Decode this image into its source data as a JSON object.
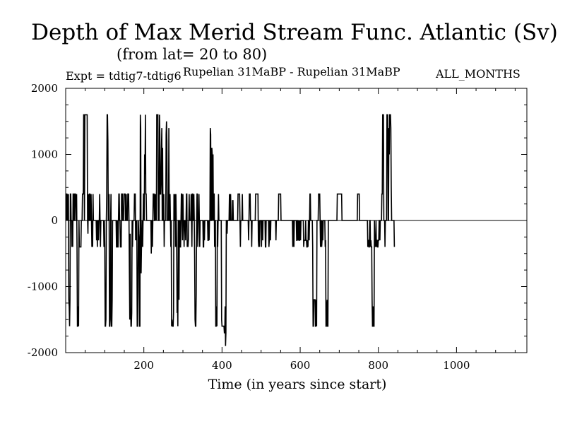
{
  "header": {
    "title": "Depth of Max Merid Stream Func. Atlantic (Sv)",
    "subtitle": "(from lat= 20 to 80)",
    "experiment": "Expt = tdtig7-tdtig6",
    "period": "Rupelian  31MaBP - Rupelian  31MaBP",
    "months": "ALL_MONTHS"
  },
  "chart_data": {
    "type": "line",
    "title": "Depth of Max Merid Stream Func. Atlantic (Sv)",
    "xlabel": "Time (in years since start)",
    "ylabel": "",
    "xlim": [
      0,
      1180
    ],
    "ylim": [
      -2000,
      2000
    ],
    "x_ticks": [
      200,
      400,
      600,
      800,
      1000
    ],
    "y_ticks": [
      -2000,
      -1000,
      0,
      1000,
      2000
    ],
    "grid": false,
    "legend": "none",
    "line_color": "#000000",
    "series": [
      {
        "x_start": 1,
        "x_step": 1,
        "values": [
          0,
          400,
          400,
          0,
          400,
          0,
          400,
          -1200,
          -1300,
          -1600,
          -1200,
          400,
          400,
          0,
          0,
          -400,
          0,
          -400,
          400,
          400,
          0,
          0,
          400,
          400,
          400,
          0,
          0,
          400,
          -400,
          -1600,
          -1600,
          -1300,
          -1600,
          0,
          -400,
          -400,
          -400,
          -400,
          -400,
          0,
          0,
          0,
          400,
          400,
          400,
          1600,
          1600,
          0,
          1600,
          1600,
          1600,
          1600,
          1600,
          1600,
          1600,
          0,
          -200,
          400,
          0,
          0,
          400,
          400,
          0,
          0,
          400,
          0,
          -400,
          0,
          -400,
          400,
          0,
          0,
          0,
          0,
          0,
          0,
          0,
          0,
          -300,
          0,
          -400,
          0,
          0,
          -300,
          0,
          0,
          400,
          0,
          -400,
          0,
          0,
          0,
          0,
          0,
          0,
          0,
          0,
          -400,
          0,
          -400,
          -1600,
          -1600,
          -1500,
          0,
          400,
          1600,
          1600,
          1200,
          0,
          0,
          400,
          -1600,
          -1600,
          -1500,
          0,
          400,
          -1600,
          -1600,
          -1200,
          0,
          0,
          0,
          0,
          0,
          0,
          0,
          0,
          0,
          0,
          -400,
          -400,
          0,
          -400,
          -400,
          0,
          400,
          400,
          0,
          0,
          -400,
          -400,
          -400,
          400,
          400,
          400,
          0,
          0,
          0,
          400,
          400,
          400,
          400,
          0,
          0,
          400,
          0,
          0,
          0,
          400,
          400,
          400,
          0,
          -800,
          -1500,
          -200,
          -1300,
          -1600,
          -1600,
          -1400,
          0,
          -400,
          0,
          0,
          0,
          0,
          400,
          400,
          400,
          -300,
          0,
          -300,
          0,
          -1600,
          -1600,
          -1100,
          0,
          -200,
          -300,
          -1600,
          -1600,
          1600,
          1400,
          -800,
          -400,
          -300,
          0,
          -400,
          0,
          400,
          400,
          0,
          1000,
          700,
          1600,
          400,
          400,
          0,
          0,
          0,
          0,
          0,
          0,
          0,
          0,
          0,
          0,
          0,
          0,
          -500,
          0,
          0,
          -400,
          0,
          400,
          400,
          400,
          0,
          0,
          400,
          0,
          400,
          0,
          1600,
          1600,
          1600,
          1600,
          0,
          0,
          0,
          1600,
          1300,
          400,
          400,
          600,
          1100,
          1400,
          0,
          1100,
          0,
          0,
          400,
          -400,
          0,
          0,
          0,
          0,
          1300,
          1500,
          1200,
          0,
          0,
          0,
          0,
          1400,
          0,
          0,
          400,
          0,
          -400,
          0,
          -1600,
          -1500,
          -1600,
          -1600,
          -1600,
          -1400,
          400,
          0,
          0,
          400,
          -400,
          400,
          0,
          -400,
          -1400,
          -1200,
          -1600,
          0,
          0,
          -1200,
          0,
          0,
          -400,
          -400,
          0,
          400,
          400,
          0,
          -300,
          400,
          0,
          0,
          -400,
          0,
          0,
          0,
          -300,
          0,
          400,
          400,
          -400,
          -300,
          -400,
          -300,
          0,
          400,
          0,
          0,
          0,
          0,
          400,
          0,
          -400,
          400,
          400,
          0,
          0,
          400,
          0,
          -600,
          -1500,
          -1600,
          -1600,
          -1100,
          0,
          400,
          400,
          -400,
          0,
          0,
          400,
          0,
          -400,
          0,
          0,
          0,
          0,
          0,
          0,
          0,
          0,
          -400,
          -400,
          0,
          -300,
          0,
          0,
          0,
          0,
          0,
          0,
          0,
          0,
          -300,
          -300,
          0,
          -300,
          0,
          0,
          1400,
          1300,
          0,
          0,
          1100,
          1000,
          0,
          1000,
          0,
          400,
          400,
          -400,
          0,
          0,
          -1600,
          -1600,
          -1300,
          -1600,
          0,
          -400,
          0,
          400,
          0,
          0,
          0,
          0,
          0,
          0,
          0,
          -1500,
          -1600,
          -1600,
          -1600,
          -1600,
          -1600,
          -1600,
          -1700,
          -1700,
          -1300,
          -1900,
          -1700,
          0,
          0,
          -200,
          0,
          0,
          0,
          0,
          0,
          400,
          0,
          0,
          400,
          0,
          0,
          0,
          0,
          300,
          300,
          0,
          0,
          0,
          0,
          0,
          0,
          0,
          0,
          0,
          0,
          0,
          0,
          400,
          400,
          400,
          400,
          400,
          0,
          -400,
          0,
          0,
          0,
          0,
          400,
          0,
          0,
          0,
          0,
          0,
          0,
          0,
          0,
          0,
          0,
          0,
          0,
          0,
          0,
          0,
          -300,
          0,
          400,
          400,
          400,
          0,
          0,
          0,
          -400,
          0,
          0,
          0,
          0,
          0,
          0,
          0,
          0,
          0,
          400,
          400,
          400,
          400,
          400,
          400,
          400,
          -300,
          -400,
          0,
          -400,
          0,
          0,
          0,
          0,
          -400,
          0,
          0,
          -300,
          0,
          0,
          0,
          0,
          0,
          0,
          -400,
          -400,
          0,
          0,
          0,
          0,
          0,
          0,
          0,
          -400,
          -300,
          0,
          0,
          -300,
          0,
          0,
          0,
          0,
          0,
          0,
          0,
          0,
          0,
          0,
          0,
          0,
          0,
          -300,
          0,
          0,
          0,
          0,
          0,
          0,
          400,
          400,
          400,
          400,
          400,
          400,
          0,
          0,
          0,
          0,
          0,
          0,
          0,
          0,
          0,
          0,
          0,
          0,
          0,
          0,
          0,
          0,
          0,
          0,
          0,
          0,
          0,
          0,
          0,
          0,
          0,
          0,
          0,
          0,
          0,
          0,
          -400,
          0,
          0,
          -400,
          0,
          0,
          0,
          0,
          0,
          0,
          -300,
          -300,
          0,
          0,
          -300,
          0,
          -300,
          -300,
          0,
          -200,
          -300,
          0,
          0,
          0,
          0,
          0,
          0,
          0,
          -400,
          -300,
          -300,
          -300,
          -300,
          0,
          -300,
          -300,
          -400,
          -400,
          -300,
          -400,
          0,
          0,
          -300,
          0,
          400,
          400,
          0,
          0,
          0,
          0,
          0,
          -400,
          -1600,
          -1600,
          -1200,
          -1200,
          -1200,
          -1200,
          -1600,
          -1600,
          -1200,
          -1600,
          0,
          0,
          0,
          0,
          400,
          400,
          400,
          400,
          0,
          -400,
          0,
          0,
          -400,
          -300,
          0,
          -300,
          0,
          0,
          0,
          0,
          0,
          -400,
          -300,
          -1600,
          -1600,
          -1300,
          -1200,
          -1600,
          -1600,
          0,
          0,
          0,
          0,
          0,
          0,
          0,
          0,
          0,
          0,
          0,
          0,
          0,
          0,
          0,
          0,
          0,
          0,
          0,
          0,
          0,
          0,
          0,
          400,
          400,
          400,
          400,
          400,
          400,
          400,
          400,
          400,
          400,
          400,
          400,
          0,
          0,
          0,
          0,
          0,
          0,
          0,
          0,
          0,
          0,
          0,
          0,
          0,
          0,
          0,
          0,
          0,
          0,
          0,
          0,
          0,
          0,
          0,
          0,
          0,
          0,
          0,
          0,
          0,
          0,
          0,
          0,
          0,
          0,
          0,
          0,
          0,
          0,
          0,
          0,
          400,
          400,
          400,
          400,
          400,
          0,
          0,
          0,
          0,
          0,
          0,
          0,
          0,
          0,
          0,
          0,
          0,
          0,
          0,
          0,
          0,
          0,
          0,
          0,
          0,
          0,
          -400,
          -300,
          -300,
          -400,
          -400,
          0,
          0,
          -400,
          -300,
          -400,
          -400,
          -1200,
          -1600,
          -1600,
          -1300,
          -1600,
          -1600,
          0,
          -400,
          -300,
          -400,
          0,
          -400,
          -300,
          -300,
          -400,
          -400,
          -300,
          -300,
          0,
          0,
          -300,
          0,
          0,
          0,
          0,
          400,
          400,
          1600,
          1600,
          1600,
          0,
          0,
          0,
          -400,
          0,
          0,
          0,
          0,
          1600,
          1600,
          1600,
          0,
          0,
          1400,
          1000,
          1600,
          1600,
          1600,
          1400,
          500,
          0,
          0,
          0,
          0,
          0,
          0,
          0,
          -400
        ]
      }
    ]
  }
}
